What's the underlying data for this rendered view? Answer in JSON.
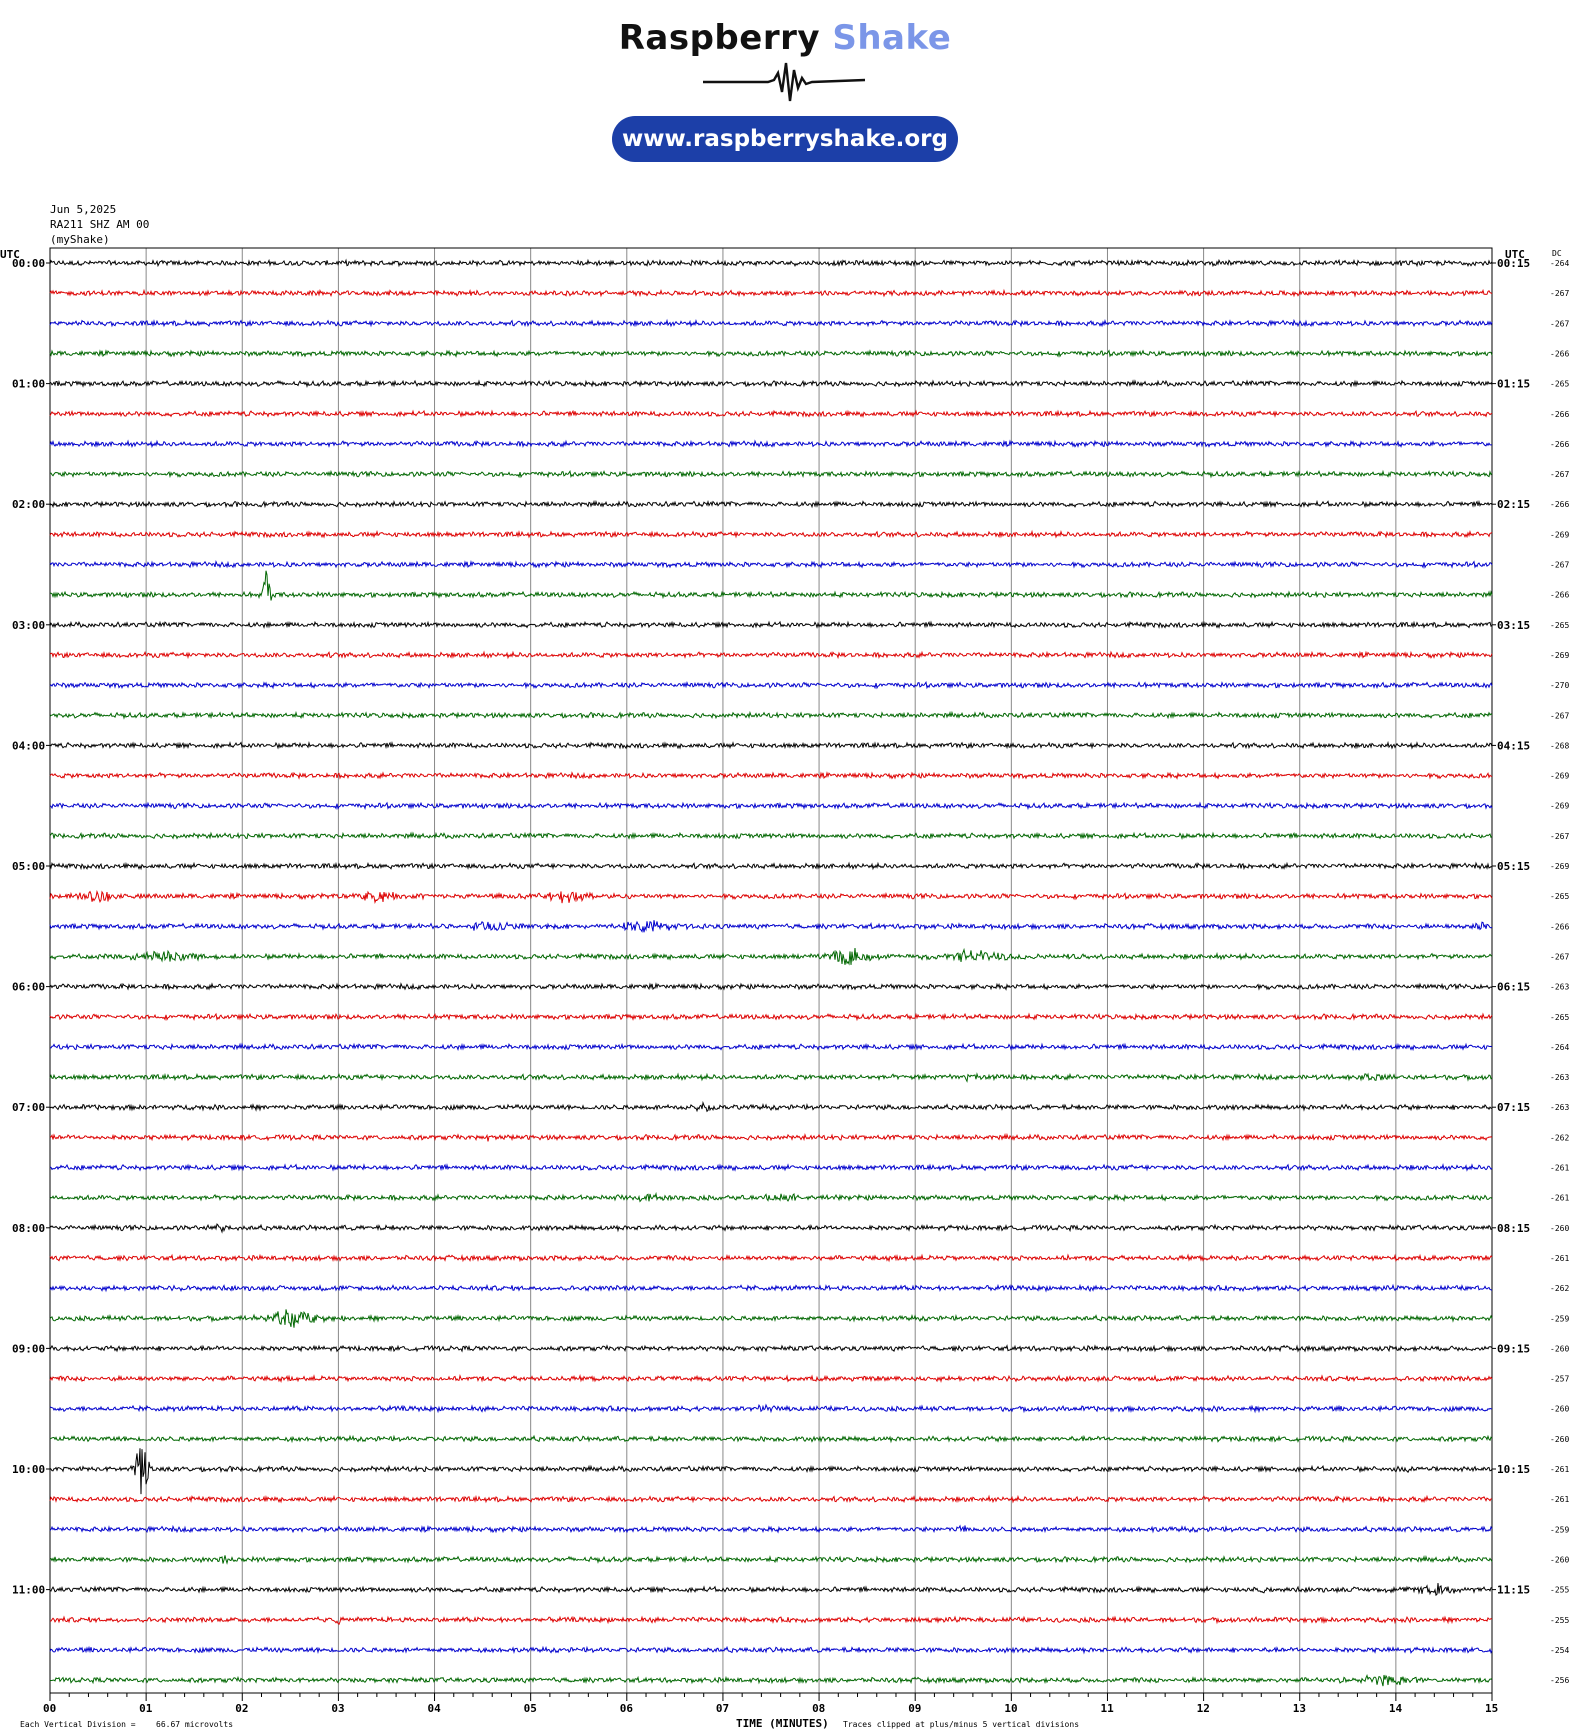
{
  "logo": {
    "brand_part1": "Raspberry",
    "brand_part2": "Shake",
    "url": "www.raspberryshake.org",
    "brand_dark": "#111111",
    "brand_accent": "#7b96e8",
    "pill_color": "#1c3fa8"
  },
  "header": {
    "date": "Jun 5,2025",
    "station": "RA211 SHZ AM 00",
    "source": "(myShake)"
  },
  "labels": {
    "utc_left": "UTC",
    "utc_right": "UTC",
    "dc": "DC",
    "x_axis": "TIME (MINUTES)",
    "vertical_division": "Each Vertical Division =",
    "vertical_division_value": "66.67 microvolts",
    "clip_note": "Traces clipped at plus/minus 5 vertical divisions"
  },
  "chart_data": {
    "type": "line",
    "x_ticks": [
      "00",
      "01",
      "02",
      "03",
      "04",
      "05",
      "06",
      "07",
      "08",
      "09",
      "10",
      "11",
      "12",
      "13",
      "14",
      "15"
    ],
    "xlim": [
      0,
      15
    ],
    "grid": true,
    "trace_colors": [
      "#000000",
      "#dd0000",
      "#0000cc",
      "#006600"
    ],
    "hours_left": [
      "00:00",
      "01:00",
      "02:00",
      "03:00",
      "04:00",
      "05:00",
      "06:00",
      "07:00",
      "08:00",
      "09:00",
      "10:00",
      "11:00"
    ],
    "hours_right": [
      "00:15",
      "01:15",
      "02:15",
      "03:15",
      "04:15",
      "05:15",
      "06:15",
      "07:15",
      "08:15",
      "09:15",
      "10:15",
      "11:15"
    ],
    "dc_values": [
      "-264",
      "-267",
      "-267",
      "-266",
      "-265",
      "-266",
      "-266",
      "-267",
      "-266",
      "-269",
      "-267",
      "-266",
      "-265",
      "-269",
      "-270",
      "-267",
      "-268",
      "-269",
      "-269",
      "-267",
      "-269",
      "-265",
      "-266",
      "-267",
      "-263",
      "-265",
      "-264",
      "-263",
      "-263",
      "-262",
      "-261",
      "-261",
      "-260",
      "-261",
      "-262",
      "-259",
      "-260",
      "-257",
      "-260",
      "-260",
      "-261",
      "-261",
      "-259",
      "-260",
      "-255",
      "-255",
      "-254",
      "-256"
    ],
    "events": [
      {
        "trace": 11,
        "minute": 2.25,
        "amp": 5,
        "width": 0.06
      },
      {
        "trace": 21,
        "minute": 0.5,
        "amp": 1.0,
        "width": 0.35
      },
      {
        "trace": 21,
        "minute": 3.4,
        "amp": 0.8,
        "width": 0.35
      },
      {
        "trace": 21,
        "minute": 5.4,
        "amp": 1.0,
        "width": 0.4
      },
      {
        "trace": 22,
        "minute": 4.6,
        "amp": 0.9,
        "width": 0.35
      },
      {
        "trace": 22,
        "minute": 6.2,
        "amp": 1.1,
        "width": 0.4
      },
      {
        "trace": 22,
        "minute": 14.9,
        "amp": 0.8,
        "width": 0.15
      },
      {
        "trace": 23,
        "minute": 1.2,
        "amp": 0.9,
        "width": 0.5
      },
      {
        "trace": 23,
        "minute": 8.3,
        "amp": 1.3,
        "width": 0.35
      },
      {
        "trace": 23,
        "minute": 9.6,
        "amp": 0.9,
        "width": 0.7
      },
      {
        "trace": 27,
        "minute": 9.5,
        "amp": 0.5,
        "width": 0.3
      },
      {
        "trace": 27,
        "minute": 13.7,
        "amp": 0.5,
        "width": 0.3
      },
      {
        "trace": 28,
        "minute": 6.8,
        "amp": 0.6,
        "width": 0.2
      },
      {
        "trace": 29,
        "minute": 4.6,
        "amp": 0.5,
        "width": 0.1
      },
      {
        "trace": 31,
        "minute": 6.2,
        "amp": 0.5,
        "width": 0.3
      },
      {
        "trace": 31,
        "minute": 7.6,
        "amp": 0.5,
        "width": 0.4
      },
      {
        "trace": 32,
        "minute": 1.8,
        "amp": 0.6,
        "width": 0.15
      },
      {
        "trace": 35,
        "minute": 2.5,
        "amp": 1.5,
        "width": 0.45
      },
      {
        "trace": 38,
        "minute": 7.4,
        "amp": 0.6,
        "width": 0.15
      },
      {
        "trace": 40,
        "minute": 0.95,
        "amp": 4.5,
        "width": 0.12
      },
      {
        "trace": 40,
        "minute": 14.1,
        "amp": 0.5,
        "width": 0.25
      },
      {
        "trace": 42,
        "minute": 9.5,
        "amp": 0.6,
        "width": 0.1
      },
      {
        "trace": 43,
        "minute": 1.8,
        "amp": 0.7,
        "width": 0.1
      },
      {
        "trace": 44,
        "minute": 12.6,
        "amp": 0.6,
        "width": 0.1
      },
      {
        "trace": 44,
        "minute": 14.4,
        "amp": 0.8,
        "width": 0.35
      },
      {
        "trace": 45,
        "minute": 3.0,
        "amp": 0.6,
        "width": 0.1
      },
      {
        "trace": 47,
        "minute": 13.9,
        "amp": 0.9,
        "width": 0.5
      }
    ]
  }
}
